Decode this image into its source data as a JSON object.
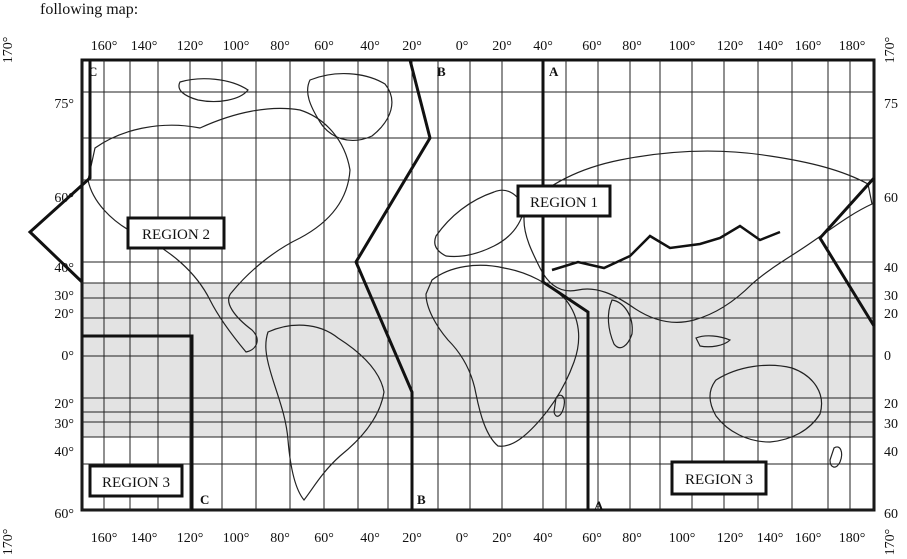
{
  "intro_text": "following map:",
  "top_longitudes": [
    "170°",
    "160°",
    "140°",
    "120°",
    "100°",
    "80°",
    "60°",
    "40°",
    "20°",
    "0°",
    "20°",
    "40°",
    "60°",
    "80°",
    "100°",
    "120°",
    "140°",
    "160°",
    "180°",
    "170°"
  ],
  "bottom_longitudes": [
    "170°",
    "160°",
    "140°",
    "120°",
    "100°",
    "80°",
    "60°",
    "40°",
    "20°",
    "0°",
    "20°",
    "40°",
    "60°",
    "80°",
    "100°",
    "120°",
    "140°",
    "160°",
    "180°",
    "170°"
  ],
  "left_latitudes": [
    "75°",
    "60°",
    "40°",
    "30°",
    "20°",
    "0°",
    "20°",
    "30°",
    "40°",
    "60°"
  ],
  "right_latitudes": [
    "75",
    "60",
    "40",
    "30",
    "20",
    "0",
    "20",
    "30",
    "40",
    "60"
  ],
  "regions": [
    "REGION 1",
    "REGION 2",
    "REGION 3",
    "REGION 3"
  ],
  "line_letters": {
    "top": [
      "C",
      "B",
      "A"
    ],
    "bottom": [
      "C",
      "B",
      "A"
    ]
  },
  "colors": {
    "band": "#e3e3e3",
    "line": "#111111"
  }
}
